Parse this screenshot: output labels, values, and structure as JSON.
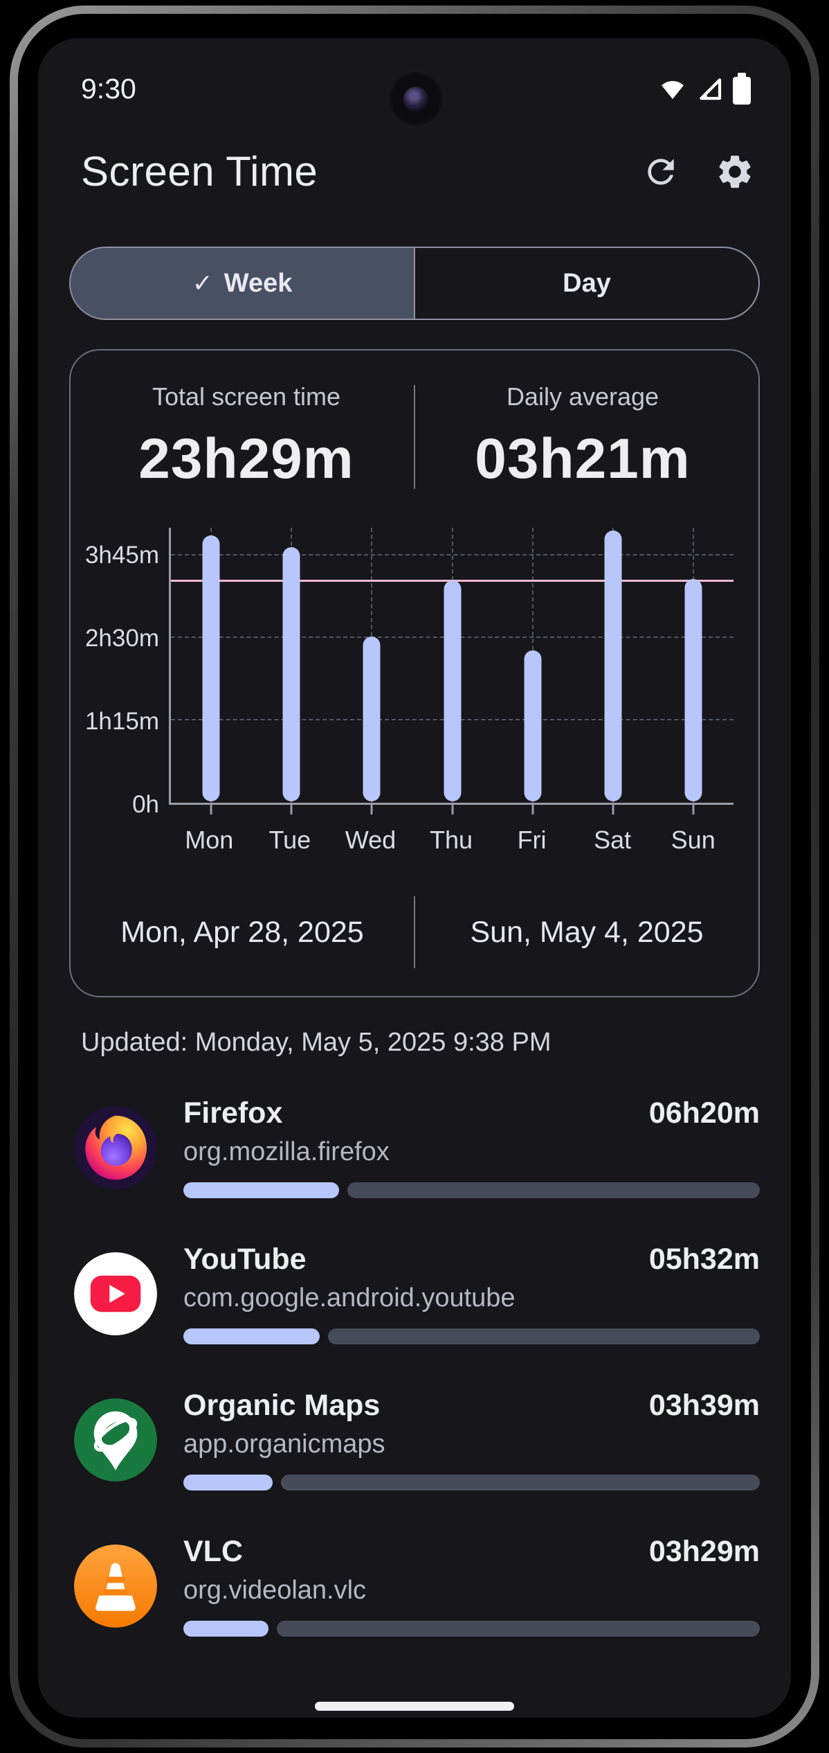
{
  "status_bar": {
    "time": "9:30"
  },
  "header": {
    "title": "Screen Time"
  },
  "tabs": {
    "check": "✓",
    "week_label": "Week",
    "day_label": "Day",
    "selected": "Week"
  },
  "summary": {
    "total_label": "Total screen time",
    "total_value": "23h29m",
    "avg_label": "Daily average",
    "avg_value": "03h21m"
  },
  "chart_data": {
    "type": "bar",
    "categories": [
      "Mon",
      "Tue",
      "Wed",
      "Thu",
      "Fri",
      "Sat",
      "Sun"
    ],
    "values_minutes": [
      242,
      231,
      150,
      201,
      137,
      246,
      202
    ],
    "y_ticks": [
      "0h",
      "1h15m",
      "2h30m",
      "3h45m"
    ],
    "y_tick_minutes": [
      0,
      75,
      150,
      225
    ],
    "ylim": [
      0,
      250
    ],
    "average_minutes": 201,
    "grid": "dashed",
    "legend": "none",
    "bar_color": "#b8c7fb",
    "average_line_color": "#eebbd2",
    "title": "",
    "xlabel": "",
    "ylabel": ""
  },
  "date_range": {
    "start": "Mon, Apr 28, 2025",
    "end": "Sun, May 4, 2025"
  },
  "updated_text": "Updated: Monday, May 5, 2025 9:38 PM",
  "apps": [
    {
      "name": "Firefox",
      "package": "org.mozilla.firefox",
      "duration": "06h20m",
      "progress_pct": 27
    },
    {
      "name": "YouTube",
      "package": "com.google.android.youtube",
      "duration": "05h32m",
      "progress_pct": 23.6
    },
    {
      "name": "Organic Maps",
      "package": "app.organicmaps",
      "duration": "03h39m",
      "progress_pct": 15.5
    },
    {
      "name": "VLC",
      "package": "org.videolan.vlc",
      "duration": "03h29m",
      "progress_pct": 14.8
    }
  ],
  "colors": {
    "bar_fill": "#b8c7fb",
    "average_line": "#eebbd2",
    "progress_track": "#474b59",
    "selected_segment": "#4a5064",
    "screen_background": "#16161b"
  }
}
